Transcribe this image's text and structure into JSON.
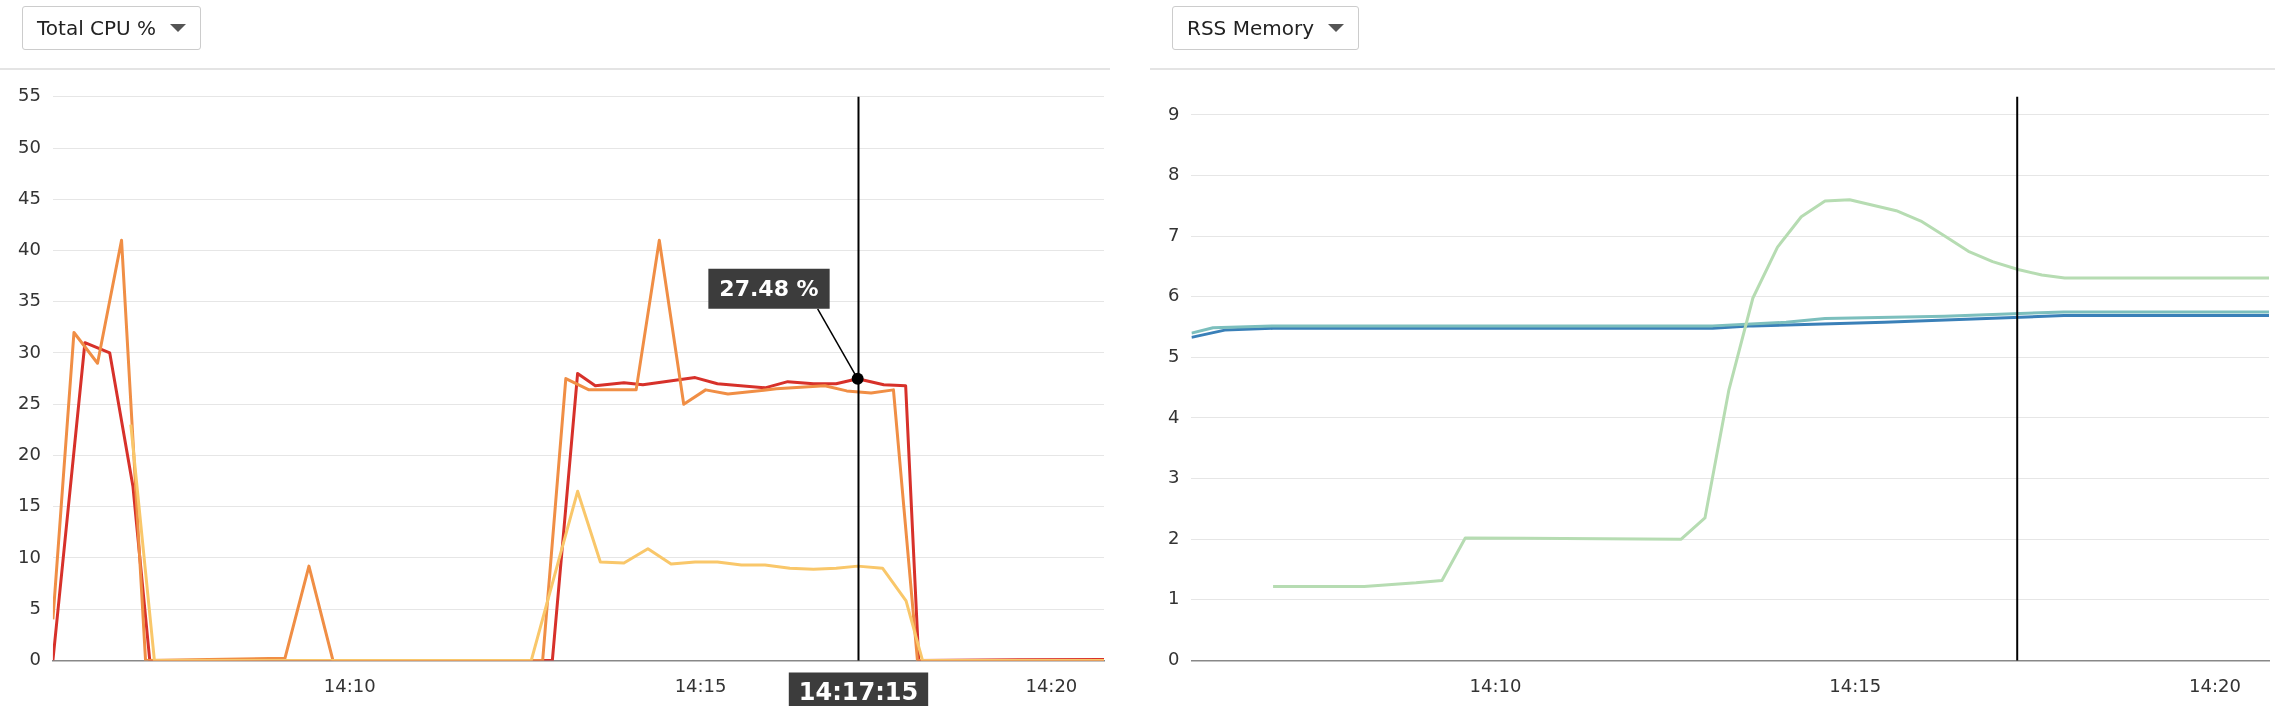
{
  "chart_data": [
    {
      "type": "line",
      "title": "Total CPU %",
      "marker": "none",
      "grid": "y",
      "xlim": [
        14.0962,
        14.3458
      ],
      "xticks": [
        {
          "value": 14.1667,
          "label": "14:10"
        },
        {
          "value": 14.25,
          "label": "14:15"
        },
        {
          "value": 14.3333,
          "label": "14:20"
        }
      ],
      "ylim": [
        0,
        55
      ],
      "yticks": [
        0,
        5,
        10,
        15,
        20,
        25,
        30,
        35,
        40,
        45,
        50,
        55
      ],
      "series": [
        {
          "color": "#f9c76a",
          "x": [
            14.1147,
            14.1203,
            14.2098,
            14.2208,
            14.2262,
            14.2318,
            14.2375,
            14.243,
            14.2487,
            14.254,
            14.2597,
            14.2653,
            14.2712,
            14.2768,
            14.2822,
            14.2873,
            14.2932,
            14.2988,
            14.3027,
            14.3458
          ],
          "values": [
            23,
            0,
            0,
            16.5,
            9.6,
            9.5,
            10.9,
            9.4,
            9.6,
            9.6,
            9.3,
            9.3,
            9.0,
            8.9,
            9.0,
            9.2,
            9.0,
            5.8,
            0,
            0
          ]
        },
        {
          "color": "#f08e45",
          "x": [
            14.0962,
            14.1012,
            14.1068,
            14.1125,
            14.1182,
            14.1513,
            14.157,
            14.1627,
            14.2125,
            14.218,
            14.2235,
            14.2347,
            14.2402,
            14.246,
            14.2512,
            14.2565,
            14.268,
            14.2795,
            14.2847,
            14.2905,
            14.2958,
            14.3015,
            14.3458
          ],
          "values": [
            4,
            32,
            29,
            41,
            0,
            0.2,
            9.2,
            0,
            0,
            27.5,
            26.4,
            26.4,
            41,
            25,
            26.4,
            26,
            26.5,
            26.8,
            26.3,
            26.1,
            26.4,
            0,
            0
          ]
        },
        {
          "color": "#d7312a",
          "x": [
            14.0962,
            14.1038,
            14.1097,
            14.1152,
            14.1192,
            14.2148,
            14.2208,
            14.225,
            14.2318,
            14.2363,
            14.2487,
            14.254,
            14.2653,
            14.2707,
            14.2768,
            14.2822,
            14.2873,
            14.2935,
            14.2987,
            14.3018,
            14.3458
          ],
          "values": [
            0,
            31,
            30,
            17,
            0,
            0,
            28,
            26.8,
            27.1,
            26.9,
            27.6,
            27.0,
            26.6,
            27.2,
            27.0,
            27.0,
            27.48,
            26.9,
            26.8,
            0,
            0.1
          ]
        }
      ],
      "ref_lines": [
        {
          "axis": "x",
          "value": 14.2875,
          "label": "14:17:15",
          "color": "#000000"
        }
      ],
      "annotations": [
        {
          "text": "27.48 %",
          "x": 14.2873,
          "y": 27.48
        }
      ]
    },
    {
      "type": "line",
      "title": "RSS Memory",
      "marker": "none",
      "grid": "y",
      "xlim": [
        14.0963,
        14.3458
      ],
      "xticks": [
        {
          "value": 14.1667,
          "label": "14:10"
        },
        {
          "value": 14.25,
          "label": "14:15"
        },
        {
          "value": 14.3333,
          "label": "14:20"
        }
      ],
      "ylim": [
        0,
        9.3
      ],
      "yticks": [
        0,
        1,
        2,
        3,
        4,
        5,
        6,
        7,
        8,
        9
      ],
      "series": [
        {
          "color": "#b6dcb2",
          "x": [
            14.1152,
            14.1363,
            14.1483,
            14.1543,
            14.1597,
            14.2097,
            14.2152,
            14.2207,
            14.2263,
            14.232,
            14.2375,
            14.243,
            14.2487,
            14.2595,
            14.2652,
            14.2708,
            14.2762,
            14.2818,
            14.2877,
            14.2932,
            14.2985,
            14.3458
          ],
          "values": [
            1.22,
            1.22,
            1.28,
            1.32,
            2.02,
            2.0,
            2.35,
            4.45,
            5.98,
            6.82,
            7.32,
            7.58,
            7.6,
            7.42,
            7.25,
            7.0,
            6.75,
            6.58,
            6.45,
            6.36,
            6.31,
            6.31
          ]
        },
        {
          "color": "#7cbfbd",
          "x": [
            14.0963,
            14.1013,
            14.1152,
            14.217,
            14.234,
            14.243,
            14.2707,
            14.2983,
            14.3458
          ],
          "values": [
            5.4,
            5.49,
            5.52,
            5.52,
            5.58,
            5.64,
            5.68,
            5.75,
            5.75
          ]
        },
        {
          "color": "#3a80b8",
          "x": [
            14.0963,
            14.104,
            14.1152,
            14.217,
            14.2263,
            14.2567,
            14.2983,
            14.3458
          ],
          "values": [
            5.33,
            5.45,
            5.48,
            5.48,
            5.52,
            5.58,
            5.69,
            5.69
          ]
        }
      ],
      "ref_lines": [
        {
          "axis": "x",
          "value": 14.2875,
          "color": "#000000"
        }
      ]
    }
  ]
}
